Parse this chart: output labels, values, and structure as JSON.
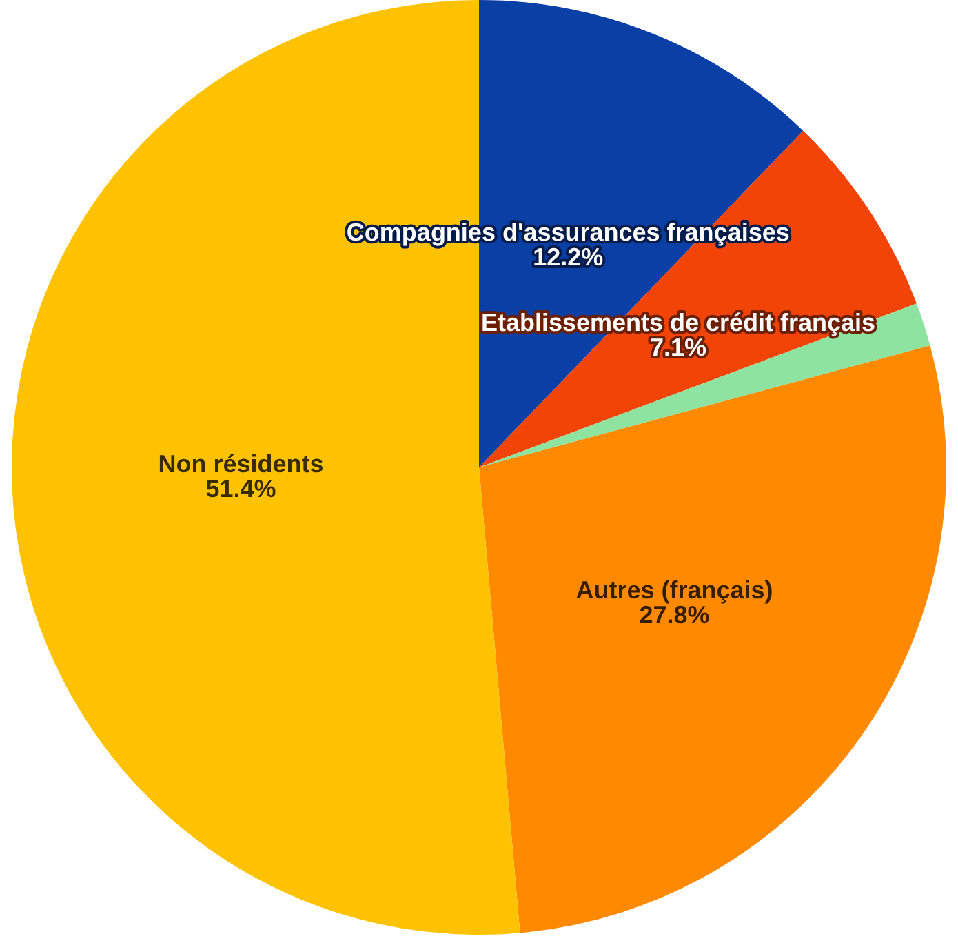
{
  "chart_data": {
    "type": "pie",
    "categories": [
      "Compagnies d'assurances françaises",
      "Etablissements de crédit français",
      null,
      "Autres (français)",
      "Non résidents"
    ],
    "values": [
      12.2,
      7.1,
      1.5,
      27.8,
      51.4
    ],
    "colors": [
      "#0a3fa6",
      "#f24407",
      "#8fe3a0",
      "#ff8a00",
      "#ffc200"
    ],
    "value_labels": [
      "12.2%",
      "7.1%",
      null,
      "27.8%",
      "51.4%"
    ]
  }
}
